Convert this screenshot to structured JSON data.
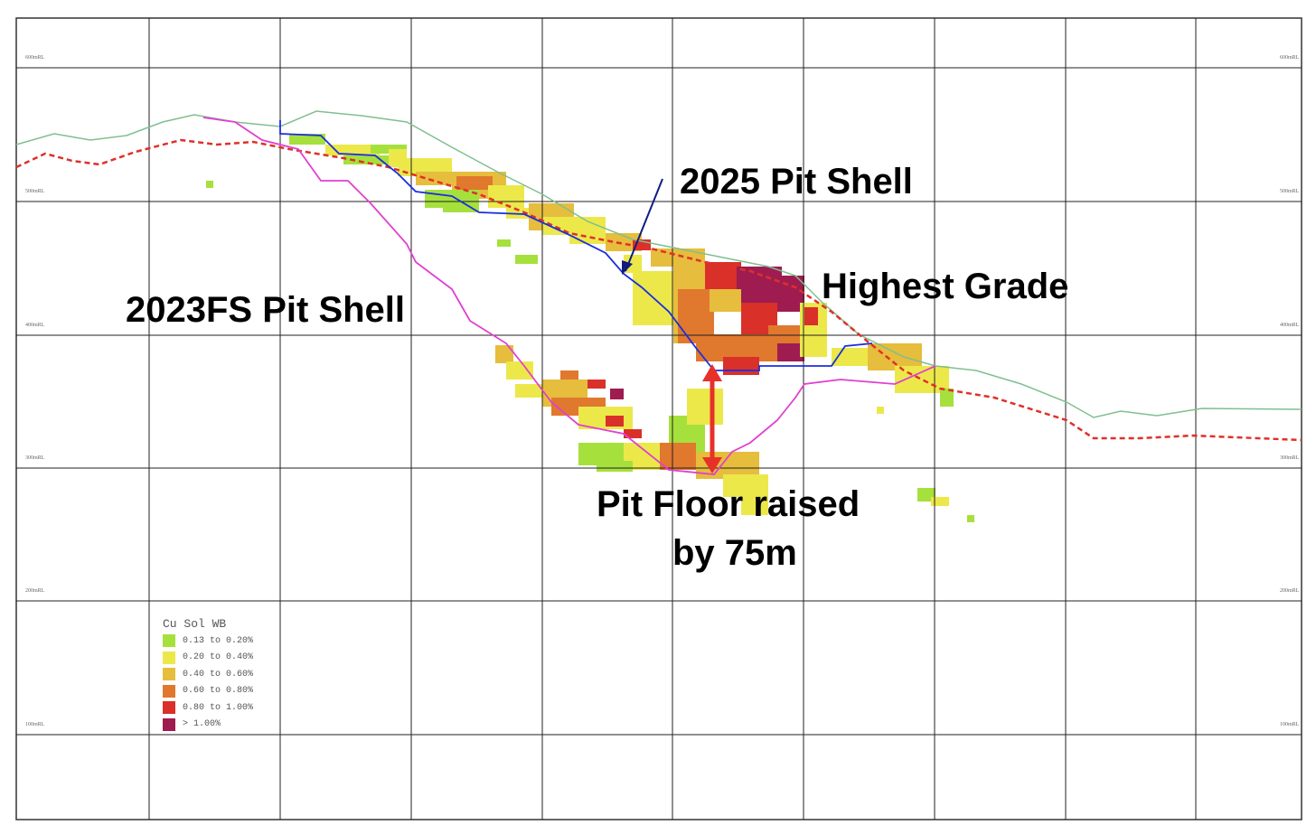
{
  "section": {
    "rl_labels": [
      "600mRL",
      "500mRL",
      "400mRL",
      "300mRL",
      "200mRL",
      "100mRL"
    ]
  },
  "annotations": {
    "pit_2025": "2025 Pit Shell",
    "highest_grade": "Highest Grade",
    "pit_2023": "2023FS Pit Shell",
    "floor_line1": "Pit Floor raised",
    "floor_line2": "by 75m"
  },
  "legend": {
    "title": "Cu Sol WB",
    "items": [
      {
        "label": "0.13 to 0.20%",
        "color": "#a6e03c"
      },
      {
        "label": "0.20 to 0.40%",
        "color": "#ece84a"
      },
      {
        "label": "0.40 to 0.60%",
        "color": "#e6bd3c"
      },
      {
        "label": "0.60 to 0.80%",
        "color": "#e0782e"
      },
      {
        "label": "0.80 to 1.00%",
        "color": "#d9302a"
      },
      {
        "label": "> 1.00%",
        "color": "#9e1c50"
      }
    ]
  },
  "lines": {
    "topography_color": "#7fbf8f",
    "dashed_color": "#e0302a",
    "pit_2025_color": "#1a2ee0",
    "pit_2023_color": "#e040d0",
    "arrow_color": "#e8302a",
    "pointer_color": "#101c80"
  }
}
